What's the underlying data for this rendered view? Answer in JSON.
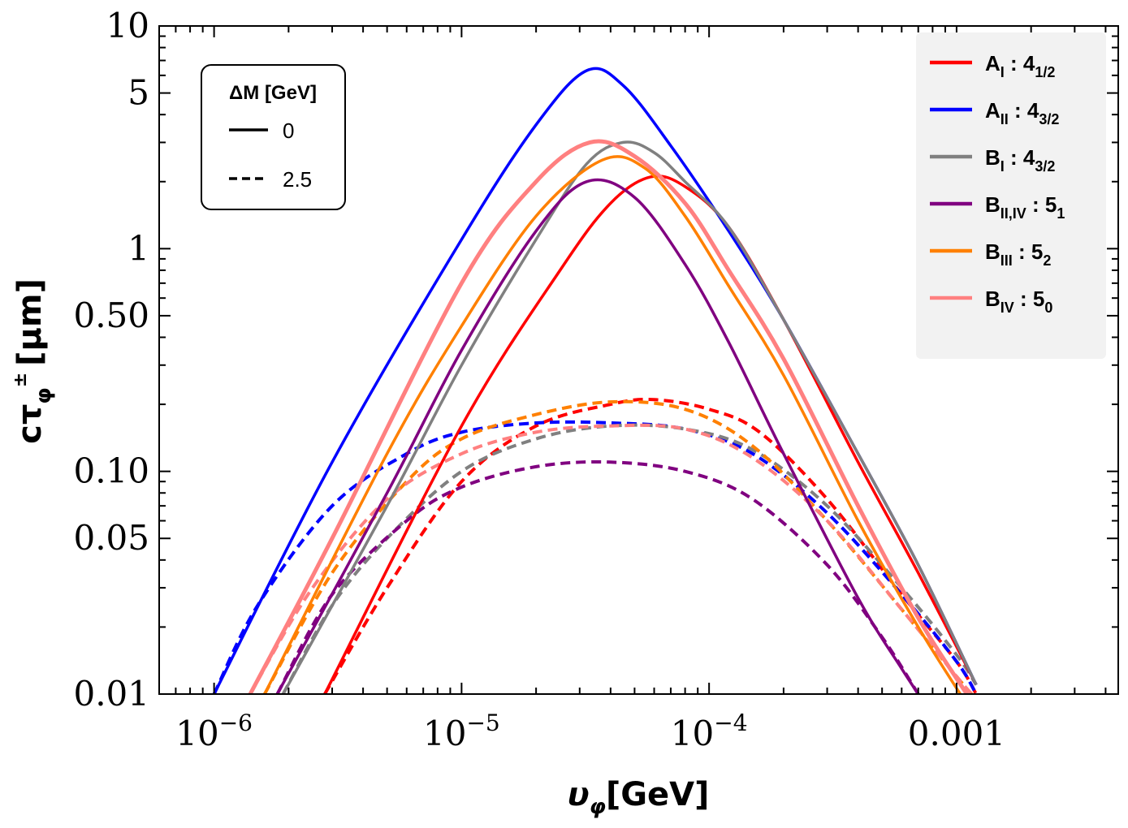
{
  "chart_data": {
    "type": "line",
    "xscale": "log",
    "yscale": "log",
    "xlim": [
      6e-07,
      0.0045
    ],
    "ylim": [
      0.01,
      10
    ],
    "xlabel_main": "υ",
    "xlabel_sub": "φ",
    "xlabel_unit": "[GeV]",
    "ylabel_main": "cτ",
    "ylabel_sub": "φ",
    "ylabel_sup": "±",
    "ylabel_unit": "[μm]",
    "x_ticks": [
      {
        "value": 1e-06,
        "base": "10",
        "exp": "−6"
      },
      {
        "value": 1e-05,
        "base": "10",
        "exp": "−5"
      },
      {
        "value": 0.0001,
        "base": "10",
        "exp": "−4"
      },
      {
        "value": 0.001,
        "label": "0.001"
      }
    ],
    "y_ticks": [
      {
        "value": 0.01,
        "label": "0.01"
      },
      {
        "value": 0.05,
        "label": "0.05"
      },
      {
        "value": 0.1,
        "label": "0.10"
      },
      {
        "value": 0.5,
        "label": "0.50"
      },
      {
        "value": 1,
        "label": "1"
      },
      {
        "value": 5,
        "label": "5"
      },
      {
        "value": 10,
        "label": "10"
      }
    ],
    "style_legend": {
      "title": "ΔM [GeV]",
      "entries": [
        {
          "dash": "solid",
          "label": "0"
        },
        {
          "dash": "dashed",
          "label": "2.5"
        }
      ]
    },
    "series": [
      {
        "name": "A_I : 4_1/2",
        "label_main": "A",
        "label_sub": "I",
        "label_rep": "4",
        "label_rep_sub": "1/2",
        "color": "#ff0000",
        "solid": {
          "x": [
            2.8e-06,
            1e-05,
            2.5e-05,
            4e-05,
            5.8e-05,
            8e-05,
            0.00012,
            0.0002,
            0.0004,
            0.0007,
            0.0012
          ],
          "y": [
            0.01,
            0.16,
            0.8,
            1.6,
            2.1,
            1.9,
            1.25,
            0.48,
            0.11,
            0.035,
            0.011
          ]
        },
        "dashed": {
          "x": [
            2.8e-06,
            5e-06,
            1e-05,
            2e-05,
            4e-05,
            6e-05,
            0.0001,
            0.00016,
            0.0003,
            0.0006,
            0.001,
            0.0012
          ],
          "y": [
            0.01,
            0.03,
            0.09,
            0.16,
            0.2,
            0.21,
            0.19,
            0.15,
            0.075,
            0.028,
            0.014,
            0.01
          ]
        }
      },
      {
        "name": "A_II : 4_3/2",
        "label_main": "A",
        "label_sub": "II",
        "label_rep": "4",
        "label_rep_sub": "3/2",
        "color": "#0000ff",
        "solid": {
          "x": [
            1e-06,
            3e-06,
            1e-05,
            2e-05,
            3.2e-05,
            4.5e-05,
            7e-05,
            0.00012,
            0.0002,
            0.0004,
            0.0007,
            0.0012
          ],
          "y": [
            0.01,
            0.11,
            1.1,
            3.6,
            6.3,
            5.4,
            2.9,
            1.2,
            0.48,
            0.12,
            0.038,
            0.011
          ]
        },
        "dashed": {
          "x": [
            1e-06,
            1.5e-06,
            3e-06,
            6e-06,
            1e-05,
            2e-05,
            4e-05,
            8e-05,
            0.00015,
            0.0003,
            0.0006,
            0.001,
            0.0012
          ],
          "y": [
            0.01,
            0.025,
            0.07,
            0.12,
            0.15,
            0.165,
            0.165,
            0.155,
            0.12,
            0.065,
            0.028,
            0.014,
            0.01
          ]
        }
      },
      {
        "name": "B_I : 4_3/2",
        "label_main": "B",
        "label_sub": "I",
        "label_rep": "4",
        "label_rep_sub": "3/2",
        "color": "#808080",
        "solid": {
          "x": [
            1.9e-06,
            5e-06,
            1e-05,
            2e-05,
            3.2e-05,
            4.5e-05,
            6e-05,
            8e-05,
            0.00012,
            0.0002,
            0.0004,
            0.0007,
            0.0012
          ],
          "y": [
            0.01,
            0.07,
            0.3,
            1.1,
            2.4,
            3.0,
            2.7,
            2.0,
            1.25,
            0.48,
            0.12,
            0.038,
            0.011
          ]
        },
        "dashed": {
          "x": [
            1.9e-06,
            3e-06,
            5e-06,
            1e-05,
            2e-05,
            4e-05,
            8e-05,
            0.00015,
            0.0003,
            0.0006,
            0.001,
            0.0012
          ],
          "y": [
            0.01,
            0.025,
            0.05,
            0.1,
            0.14,
            0.16,
            0.155,
            0.125,
            0.07,
            0.03,
            0.015,
            0.011
          ]
        }
      },
      {
        "name": "B_II,IV : 5_1",
        "label_main": "B",
        "label_sub": "II,IV",
        "label_rep": "5",
        "label_rep_sub": "1",
        "color": "#800080",
        "solid": {
          "x": [
            1.8e-06,
            5e-06,
            1e-05,
            2e-05,
            3.2e-05,
            5e-05,
            8e-05,
            0.00012,
            0.0002,
            0.0004,
            0.0006,
            0.0008
          ],
          "y": [
            0.01,
            0.08,
            0.35,
            1.2,
            2.0,
            1.7,
            0.85,
            0.38,
            0.12,
            0.027,
            0.013,
            0.008
          ]
        },
        "dashed": {
          "x": [
            1.8e-06,
            3e-06,
            6e-06,
            1e-05,
            2e-05,
            4e-05,
            8e-05,
            0.00015,
            0.0003,
            0.0005,
            0.0007
          ],
          "y": [
            0.01,
            0.028,
            0.06,
            0.085,
            0.105,
            0.11,
            0.1,
            0.075,
            0.038,
            0.018,
            0.01
          ]
        }
      },
      {
        "name": "B_III : 5_2",
        "label_main": "B",
        "label_sub": "III",
        "label_rep": "5",
        "label_rep_sub": "2",
        "color": "#ff8000",
        "solid": {
          "x": [
            1.6e-06,
            5e-06,
            1e-05,
            2e-05,
            3.7e-05,
            5.5e-05,
            8e-05,
            0.00012,
            0.0002,
            0.0004,
            0.0007,
            0.0011
          ],
          "y": [
            0.01,
            0.12,
            0.45,
            1.4,
            2.5,
            2.3,
            1.4,
            0.68,
            0.27,
            0.06,
            0.02,
            0.009
          ]
        },
        "dashed": {
          "x": [
            1.6e-06,
            3e-06,
            6e-06,
            1e-05,
            2e-05,
            4e-05,
            8e-05,
            0.00015,
            0.0003,
            0.0006,
            0.001,
            0.00115
          ],
          "y": [
            0.01,
            0.035,
            0.09,
            0.14,
            0.18,
            0.205,
            0.19,
            0.13,
            0.06,
            0.024,
            0.012,
            0.01
          ]
        }
      },
      {
        "name": "B_IV : 5_0",
        "label_main": "B",
        "label_sub": "IV",
        "label_rep": "5",
        "label_rep_sub": "0",
        "color": "#ff8080",
        "solid": {
          "x": [
            1.4e-06,
            3e-06,
            1e-05,
            2e-05,
            3.3e-05,
            5e-05,
            8e-05,
            0.00012,
            0.0002,
            0.0004,
            0.0007,
            0.0011
          ],
          "y": [
            0.01,
            0.05,
            0.7,
            2.0,
            3.0,
            2.6,
            1.6,
            0.8,
            0.32,
            0.07,
            0.022,
            0.01
          ]
        },
        "dashed": {
          "x": [
            1.4e-06,
            2.5e-06,
            5e-06,
            1e-05,
            2e-05,
            4e-05,
            8e-05,
            0.00015,
            0.0003,
            0.0006,
            0.001,
            0.00115
          ],
          "y": [
            0.01,
            0.03,
            0.075,
            0.12,
            0.15,
            0.16,
            0.155,
            0.115,
            0.06,
            0.024,
            0.012,
            0.01
          ]
        }
      }
    ]
  }
}
